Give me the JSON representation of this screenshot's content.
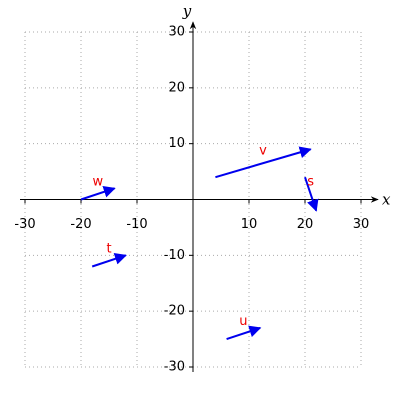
{
  "chart_data": {
    "type": "vector",
    "x_label": "x",
    "y_label": "y",
    "xlim": [
      -30,
      30
    ],
    "ylim": [
      -30,
      30
    ],
    "xticks": [
      -30,
      -20,
      -10,
      10,
      20,
      30
    ],
    "yticks": [
      -30,
      -20,
      -10,
      10,
      20,
      30
    ],
    "grid": true,
    "color": "#0000ee",
    "label_color": "#ee0000",
    "series": [
      {
        "name": "v",
        "start": [
          4,
          4
        ],
        "end": [
          21,
          9
        ]
      },
      {
        "name": "s",
        "start": [
          20,
          4
        ],
        "end": [
          22,
          -2
        ]
      },
      {
        "name": "w",
        "start": [
          -20,
          0
        ],
        "end": [
          -14,
          2
        ]
      },
      {
        "name": "t",
        "start": [
          -18,
          -12
        ],
        "end": [
          -12,
          -10
        ]
      },
      {
        "name": "u",
        "start": [
          6,
          -25
        ],
        "end": [
          12,
          -23
        ]
      }
    ]
  }
}
